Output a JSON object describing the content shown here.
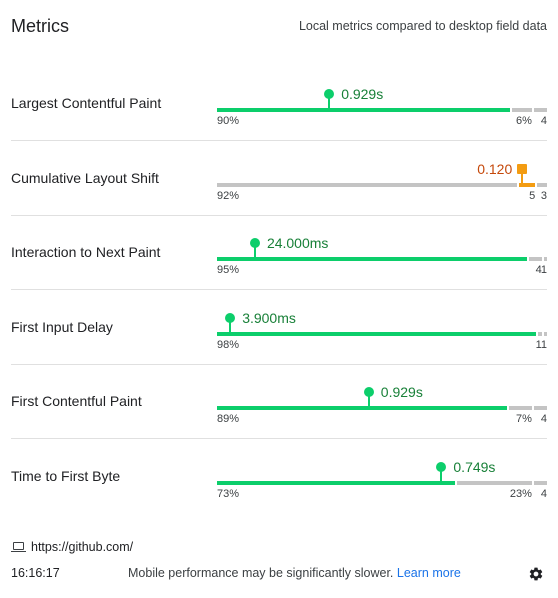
{
  "header": {
    "title": "Metrics",
    "subtitle": "Local metrics compared to desktop field data"
  },
  "metrics": [
    {
      "name": "Largest Contentful Paint",
      "value": "0.929s",
      "status": "good",
      "marker_fraction": 0.34,
      "distribution": {
        "good": 0.9,
        "ni": 0.06,
        "poor": 0.04
      },
      "labels": {
        "good": "90%",
        "ni": "6%",
        "poor": "4"
      }
    },
    {
      "name": "Cumulative Layout Shift",
      "value": "0.120",
      "status": "ni",
      "marker_fraction": 0.925,
      "distribution": {
        "good": 0.92,
        "ni": 0.05,
        "poor": 0.03
      },
      "labels": {
        "good": "92%",
        "ni": "5",
        "poor": "3"
      }
    },
    {
      "name": "Interaction to Next Paint",
      "value": "24.000ms",
      "status": "good",
      "marker_fraction": 0.115,
      "distribution": {
        "good": 0.95,
        "ni": 0.04,
        "poor": 0.01
      },
      "labels": {
        "good": "95%",
        "ni": "4",
        "poor": "1"
      }
    },
    {
      "name": "First Input Delay",
      "value": "3.900ms",
      "status": "good",
      "marker_fraction": 0.04,
      "distribution": {
        "good": 0.98,
        "ni": 0.01,
        "poor": 0.01
      },
      "labels": {
        "good": "98%",
        "ni": "1",
        "poor": "1"
      }
    },
    {
      "name": "First Contentful Paint",
      "value": "0.929s",
      "status": "good",
      "marker_fraction": 0.46,
      "distribution": {
        "good": 0.89,
        "ni": 0.07,
        "poor": 0.04
      },
      "labels": {
        "good": "89%",
        "ni": "7%",
        "poor": "4"
      }
    },
    {
      "name": "Time to First Byte",
      "value": "0.749s",
      "status": "good",
      "marker_fraction": 0.68,
      "distribution": {
        "good": 0.73,
        "ni": 0.23,
        "poor": 0.04
      },
      "labels": {
        "good": "73%",
        "ni": "23%",
        "poor": "4"
      }
    }
  ],
  "colors": {
    "good": "#0cce6b",
    "good_text": "#188038",
    "ni": "#f39c12",
    "ni_text": "#c5480a",
    "neutral": "#c4c4c4"
  },
  "footer": {
    "device_icon": "laptop-icon",
    "url": "https://github.com/",
    "time": "16:16:17",
    "message": "Mobile performance may be significantly slower.",
    "link_label": "Learn more",
    "settings_icon": "gear-icon"
  }
}
